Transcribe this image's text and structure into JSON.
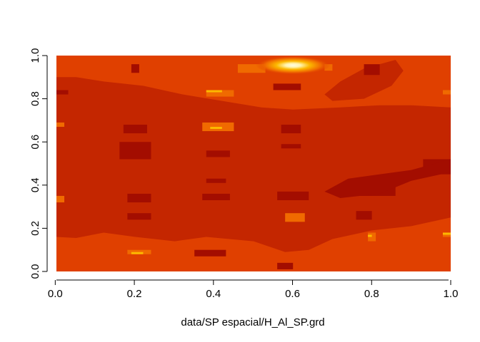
{
  "chart_data": {
    "type": "heatmap",
    "title": "",
    "xlabel": "data/SP espacial/H_Al_SP.grd",
    "ylabel": "",
    "xlim": [
      0,
      1
    ],
    "ylim": [
      0,
      1
    ],
    "x_ticks": [
      "0.0",
      "0.2",
      "0.4",
      "0.6",
      "0.8",
      "1.0"
    ],
    "y_ticks": [
      "0.0",
      "0.2",
      "0.4",
      "0.6",
      "0.8",
      "1.0"
    ],
    "palette": "heat",
    "colors": {
      "darkest": "#a30d00",
      "dark": "#c42600",
      "mid": "#e04000",
      "light": "#f06a00",
      "bright": "#fcb800",
      "highlight": "#fff4b0"
    }
  }
}
